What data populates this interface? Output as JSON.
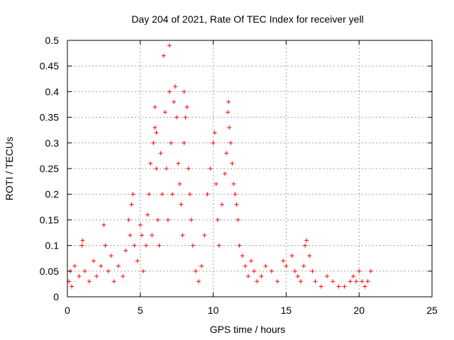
{
  "chart_data": {
    "type": "scatter",
    "title": "Day 204 of 2021, Rate Of TEC Index for receiver yell",
    "xlabel": "GPS time / hours",
    "ylabel": "ROTI / TECUs",
    "xlim": [
      0,
      25
    ],
    "ylim": [
      0,
      0.5
    ],
    "x_ticks": [
      0,
      5,
      10,
      15,
      20,
      25
    ],
    "x_tick_labels": [
      "0",
      "5",
      "10",
      "15",
      "20",
      "25"
    ],
    "y_ticks": [
      0,
      0.05,
      0.1,
      0.15,
      0.2,
      0.25,
      0.3,
      0.35,
      0.4,
      0.45,
      0.5
    ],
    "y_tick_labels": [
      "0",
      "0.05",
      "0.1",
      "0.15",
      "0.2",
      "0.25",
      "0.3",
      "0.35",
      "0.4",
      "0.45",
      "0.5"
    ],
    "grid": true,
    "marker": "+",
    "marker_color": "#ff0000",
    "series": [
      {
        "name": "ROTI",
        "x": [
          0.1,
          0.2,
          0.3,
          0.5,
          0.8,
          1.0,
          1.05,
          1.2,
          1.5,
          1.8,
          2.0,
          2.3,
          2.5,
          2.6,
          2.8,
          3.0,
          3.2,
          3.5,
          3.8,
          4.0,
          4.2,
          4.3,
          4.4,
          4.5,
          4.6,
          4.8,
          5.0,
          5.1,
          5.2,
          5.4,
          5.5,
          5.6,
          5.7,
          5.8,
          5.9,
          6.0,
          6.0,
          6.1,
          6.1,
          6.2,
          6.3,
          6.4,
          6.5,
          6.6,
          6.7,
          6.8,
          6.9,
          7.0,
          7.0,
          7.1,
          7.2,
          7.3,
          7.4,
          7.5,
          7.6,
          7.7,
          7.8,
          7.9,
          8.0,
          8.0,
          8.1,
          8.2,
          8.3,
          8.4,
          8.5,
          8.6,
          8.8,
          9.0,
          9.2,
          9.4,
          9.6,
          9.8,
          10.0,
          10.1,
          10.2,
          10.3,
          10.4,
          10.6,
          10.8,
          10.9,
          11.0,
          11.05,
          11.1,
          11.2,
          11.3,
          11.4,
          11.5,
          11.6,
          11.7,
          11.8,
          12.0,
          12.2,
          12.4,
          12.6,
          12.8,
          13.0,
          13.3,
          13.6,
          14.0,
          14.4,
          14.8,
          15.0,
          15.4,
          15.6,
          15.8,
          16.0,
          16.2,
          16.3,
          16.4,
          16.6,
          16.8,
          17.0,
          17.4,
          17.8,
          18.2,
          18.6,
          19.0,
          19.4,
          19.6,
          19.8,
          20.0,
          20.2,
          20.4,
          20.6,
          20.8
        ],
        "y": [
          0.03,
          0.05,
          0.02,
          0.06,
          0.04,
          0.1,
          0.11,
          0.05,
          0.03,
          0.07,
          0.04,
          0.06,
          0.14,
          0.1,
          0.05,
          0.08,
          0.03,
          0.06,
          0.04,
          0.09,
          0.15,
          0.12,
          0.18,
          0.2,
          0.1,
          0.07,
          0.14,
          0.12,
          0.05,
          0.1,
          0.16,
          0.2,
          0.26,
          0.12,
          0.3,
          0.37,
          0.33,
          0.25,
          0.32,
          0.15,
          0.1,
          0.28,
          0.2,
          0.47,
          0.36,
          0.25,
          0.15,
          0.49,
          0.4,
          0.3,
          0.2,
          0.38,
          0.41,
          0.35,
          0.26,
          0.22,
          0.18,
          0.12,
          0.3,
          0.4,
          0.35,
          0.37,
          0.25,
          0.2,
          0.15,
          0.1,
          0.05,
          0.03,
          0.06,
          0.12,
          0.2,
          0.25,
          0.3,
          0.32,
          0.22,
          0.15,
          0.1,
          0.18,
          0.24,
          0.28,
          0.36,
          0.38,
          0.33,
          0.3,
          0.26,
          0.22,
          0.2,
          0.18,
          0.15,
          0.1,
          0.08,
          0.06,
          0.04,
          0.07,
          0.05,
          0.03,
          0.04,
          0.06,
          0.05,
          0.03,
          0.07,
          0.06,
          0.08,
          0.05,
          0.04,
          0.03,
          0.06,
          0.1,
          0.11,
          0.08,
          0.05,
          0.03,
          0.02,
          0.04,
          0.03,
          0.02,
          0.02,
          0.03,
          0.04,
          0.03,
          0.05,
          0.03,
          0.02,
          0.03,
          0.05
        ]
      }
    ]
  }
}
